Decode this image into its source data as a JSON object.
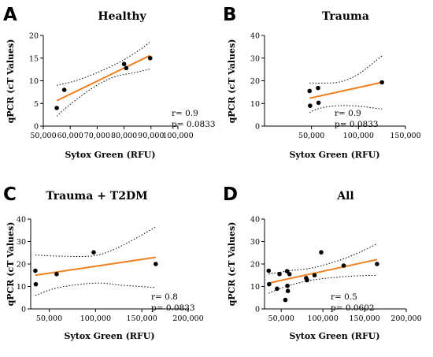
{
  "colors": {
    "regression_line": "#F07F1E",
    "points": "#000000"
  },
  "chart_data": [
    {
      "type": "scatter",
      "panel_letter": "A",
      "title": "Healthy",
      "xlabel": "Sytox Green (RFU)",
      "ylabel": "qPCR (cT Values)",
      "xlim": [
        50000,
        100000
      ],
      "ylim": [
        0,
        20
      ],
      "x_ticks": [
        50000,
        60000,
        70000,
        80000,
        90000,
        100000
      ],
      "x_tick_labels": [
        "50,000",
        "60,000",
        "70,000",
        "80,000",
        "90,000",
        "100,000"
      ],
      "y_ticks": [
        0,
        5,
        10,
        15,
        20
      ],
      "y_tick_labels": [
        "0",
        "5",
        "10",
        "15",
        "20"
      ],
      "points": [
        [
          55000,
          4.0
        ],
        [
          57800,
          8.0
        ],
        [
          80000,
          13.7
        ],
        [
          80800,
          12.8
        ],
        [
          89700,
          15.0
        ]
      ],
      "fit": [
        [
          55000,
          5.6
        ],
        [
          89700,
          15.6
        ]
      ],
      "ci_upper": [
        [
          55000,
          9.0
        ],
        [
          62000,
          10.0
        ],
        [
          70000,
          11.8
        ],
        [
          78000,
          14.0
        ],
        [
          85000,
          16.5
        ],
        [
          89700,
          18.6
        ]
      ],
      "ci_lower": [
        [
          55000,
          2.2
        ],
        [
          60000,
          4.8
        ],
        [
          68000,
          8.3
        ],
        [
          76000,
          10.8
        ],
        [
          84000,
          11.8
        ],
        [
          89700,
          12.6
        ]
      ],
      "r": "r= 0.9",
      "p": "p= 0.0833",
      "grid": false
    },
    {
      "type": "scatter",
      "panel_letter": "B",
      "title": "Trauma",
      "xlabel": "Sytox Green (RFU)",
      "ylabel": "qPCR (cT Values)",
      "xlim": [
        0,
        150000
      ],
      "ylim": [
        0,
        40
      ],
      "x_ticks": [
        50000,
        100000,
        150000
      ],
      "x_tick_labels": [
        "50,000",
        "100,000",
        "150,000"
      ],
      "y_ticks": [
        0,
        10,
        20,
        30,
        40
      ],
      "y_tick_labels": [
        "0",
        "10",
        "20",
        "30",
        "40"
      ],
      "points": [
        [
          48000,
          15.5
        ],
        [
          48500,
          9.0
        ],
        [
          57000,
          16.8
        ],
        [
          57500,
          10.3
        ],
        [
          125000,
          19.3
        ]
      ],
      "fit": [
        [
          48000,
          12.3
        ],
        [
          125000,
          19.3
        ]
      ],
      "ci_upper": [
        [
          48000,
          19.0
        ],
        [
          60000,
          19.0
        ],
        [
          80000,
          19.5
        ],
        [
          100000,
          23.0
        ],
        [
          125000,
          31.0
        ]
      ],
      "ci_lower": [
        [
          48000,
          6.0
        ],
        [
          60000,
          8.0
        ],
        [
          80000,
          9.0
        ],
        [
          100000,
          8.8
        ],
        [
          125000,
          7.5
        ]
      ],
      "r": "r= 0.9",
      "p": "p= 0.0833",
      "grid": false
    },
    {
      "type": "scatter",
      "panel_letter": "C",
      "title": "Trauma  + T2DM",
      "xlabel": "Sytox Green (RFU)",
      "ylabel": "qPCR (cT Values)",
      "xlim": [
        30000,
        200000
      ],
      "ylim": [
        0,
        40
      ],
      "x_ticks": [
        50000,
        100000,
        150000,
        200000
      ],
      "x_tick_labels": [
        "50,000",
        "100,000",
        "150,000",
        "200,000"
      ],
      "y_ticks": [
        0,
        10,
        20,
        30,
        40
      ],
      "y_tick_labels": [
        "0",
        "10",
        "20",
        "30",
        "40"
      ],
      "points": [
        [
          35000,
          17.0
        ],
        [
          35500,
          11.0
        ],
        [
          58000,
          15.5
        ],
        [
          98000,
          25.2
        ],
        [
          165000,
          20.0
        ]
      ],
      "fit": [
        [
          35000,
          15.0
        ],
        [
          165000,
          23.0
        ]
      ],
      "ci_upper": [
        [
          35000,
          24.0
        ],
        [
          60000,
          23.5
        ],
        [
          100000,
          23.8
        ],
        [
          130000,
          28.5
        ],
        [
          165000,
          36.5
        ]
      ],
      "ci_lower": [
        [
          35000,
          6.0
        ],
        [
          60000,
          9.5
        ],
        [
          100000,
          11.5
        ],
        [
          130000,
          10.5
        ],
        [
          165000,
          9.5
        ]
      ],
      "r": "r= 0.8",
      "p": "p= 0.0833",
      "grid": false
    },
    {
      "type": "scatter",
      "panel_letter": "D",
      "title": "All",
      "xlabel": "Sytox Green (RFU)",
      "ylabel": "qPCR (cT Values)",
      "xlim": [
        30000,
        200000
      ],
      "ylim": [
        0,
        40
      ],
      "x_ticks": [
        50000,
        100000,
        150000,
        200000
      ],
      "x_tick_labels": [
        "50,000",
        "100,000",
        "150,000",
        "200,000"
      ],
      "y_ticks": [
        0,
        10,
        20,
        30,
        40
      ],
      "y_tick_labels": [
        "0",
        "10",
        "20",
        "30",
        "40"
      ],
      "points": [
        [
          35000,
          17.0
        ],
        [
          35500,
          11.0
        ],
        [
          45000,
          9.0
        ],
        [
          48000,
          15.5
        ],
        [
          55000,
          4.0
        ],
        [
          57000,
          16.8
        ],
        [
          57500,
          10.3
        ],
        [
          58000,
          8.0
        ],
        [
          60000,
          15.5
        ],
        [
          80000,
          13.7
        ],
        [
          81000,
          12.8
        ],
        [
          90000,
          15.0
        ],
        [
          98000,
          25.2
        ],
        [
          125000,
          19.3
        ],
        [
          165000,
          20.0
        ]
      ],
      "fit": [
        [
          35000,
          11.5
        ],
        [
          165000,
          22.0
        ]
      ],
      "ci_upper": [
        [
          35000,
          15.5
        ],
        [
          60000,
          17.0
        ],
        [
          90000,
          18.5
        ],
        [
          130000,
          23.0
        ],
        [
          165000,
          29.0
        ]
      ],
      "ci_lower": [
        [
          35000,
          7.0
        ],
        [
          60000,
          10.5
        ],
        [
          90000,
          13.0
        ],
        [
          130000,
          14.5
        ],
        [
          165000,
          15.0
        ]
      ],
      "r": "r= 0.5",
      "p": "p= 0.0602",
      "grid": false
    }
  ]
}
